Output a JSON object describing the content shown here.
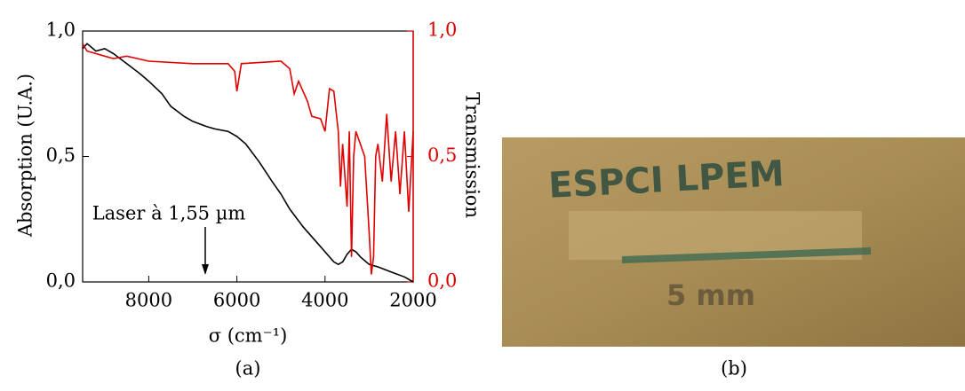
{
  "chart_data": {
    "type": "line",
    "xlabel": "σ (cm⁻¹)",
    "ylabel": "Absorption (U.A.)",
    "y2label": "Transmission",
    "annotation": "Laser à 1,55 µm",
    "xlim": [
      9500,
      2000
    ],
    "xticks": [
      8000,
      6000,
      4000,
      2000
    ],
    "ylim": [
      0,
      1
    ],
    "yticks": [
      {
        "value": 0,
        "label": "0,0"
      },
      {
        "value": 0.5,
        "label": "0,5"
      },
      {
        "value": 1,
        "label": "1,0"
      }
    ],
    "y2lim": [
      0,
      1
    ],
    "y2ticks": [
      {
        "value": 0,
        "label": "0,0"
      },
      {
        "value": 0.5,
        "label": "0,5"
      },
      {
        "value": 1,
        "label": "1,0"
      }
    ],
    "y2color": "#e00000",
    "series": [
      {
        "name": "Absorption",
        "color": "#000000",
        "x": [
          9500,
          9400,
          9200,
          9000,
          8800,
          8500,
          8200,
          8000,
          7700,
          7500,
          7200,
          7000,
          6700,
          6500,
          6200,
          6000,
          5800,
          5500,
          5200,
          5000,
          4800,
          4500,
          4200,
          4000,
          3800,
          3700,
          3600,
          3500,
          3400,
          3300,
          3200,
          3000,
          2800,
          2500,
          2200,
          2000
        ],
        "values": [
          0.93,
          0.95,
          0.92,
          0.93,
          0.91,
          0.87,
          0.83,
          0.8,
          0.75,
          0.7,
          0.66,
          0.64,
          0.62,
          0.61,
          0.6,
          0.58,
          0.55,
          0.48,
          0.4,
          0.35,
          0.29,
          0.22,
          0.16,
          0.12,
          0.08,
          0.07,
          0.08,
          0.11,
          0.13,
          0.12,
          0.1,
          0.07,
          0.06,
          0.04,
          0.02,
          0.0
        ]
      },
      {
        "name": "Transmission",
        "color": "#e00000",
        "axis": "y2",
        "x": [
          9500,
          9400,
          9000,
          8800,
          8500,
          8000,
          7000,
          6200,
          6050,
          6000,
          5900,
          5000,
          4800,
          4700,
          4600,
          4400,
          4300,
          4100,
          4000,
          3900,
          3800,
          3700,
          3650,
          3600,
          3500,
          3450,
          3400,
          3350,
          3300,
          3200,
          3100,
          3000,
          2950,
          2900,
          2850,
          2800,
          2700,
          2600,
          2500,
          2400,
          2300,
          2200,
          2100,
          2000
        ],
        "values": [
          0.95,
          0.92,
          0.9,
          0.89,
          0.9,
          0.88,
          0.87,
          0.87,
          0.84,
          0.76,
          0.87,
          0.88,
          0.85,
          0.75,
          0.8,
          0.72,
          0.66,
          0.65,
          0.6,
          0.77,
          0.76,
          0.6,
          0.38,
          0.55,
          0.3,
          0.6,
          0.1,
          0.5,
          0.6,
          0.55,
          0.5,
          0.2,
          0.03,
          0.1,
          0.5,
          0.55,
          0.4,
          0.67,
          0.4,
          0.6,
          0.35,
          0.6,
          0.28,
          0.6
        ]
      }
    ]
  },
  "figure": {
    "caption_a": "(a)",
    "caption_b": "(b)",
    "photo_text": "ESPCI LPEM",
    "photo_scale": "5 mm"
  }
}
